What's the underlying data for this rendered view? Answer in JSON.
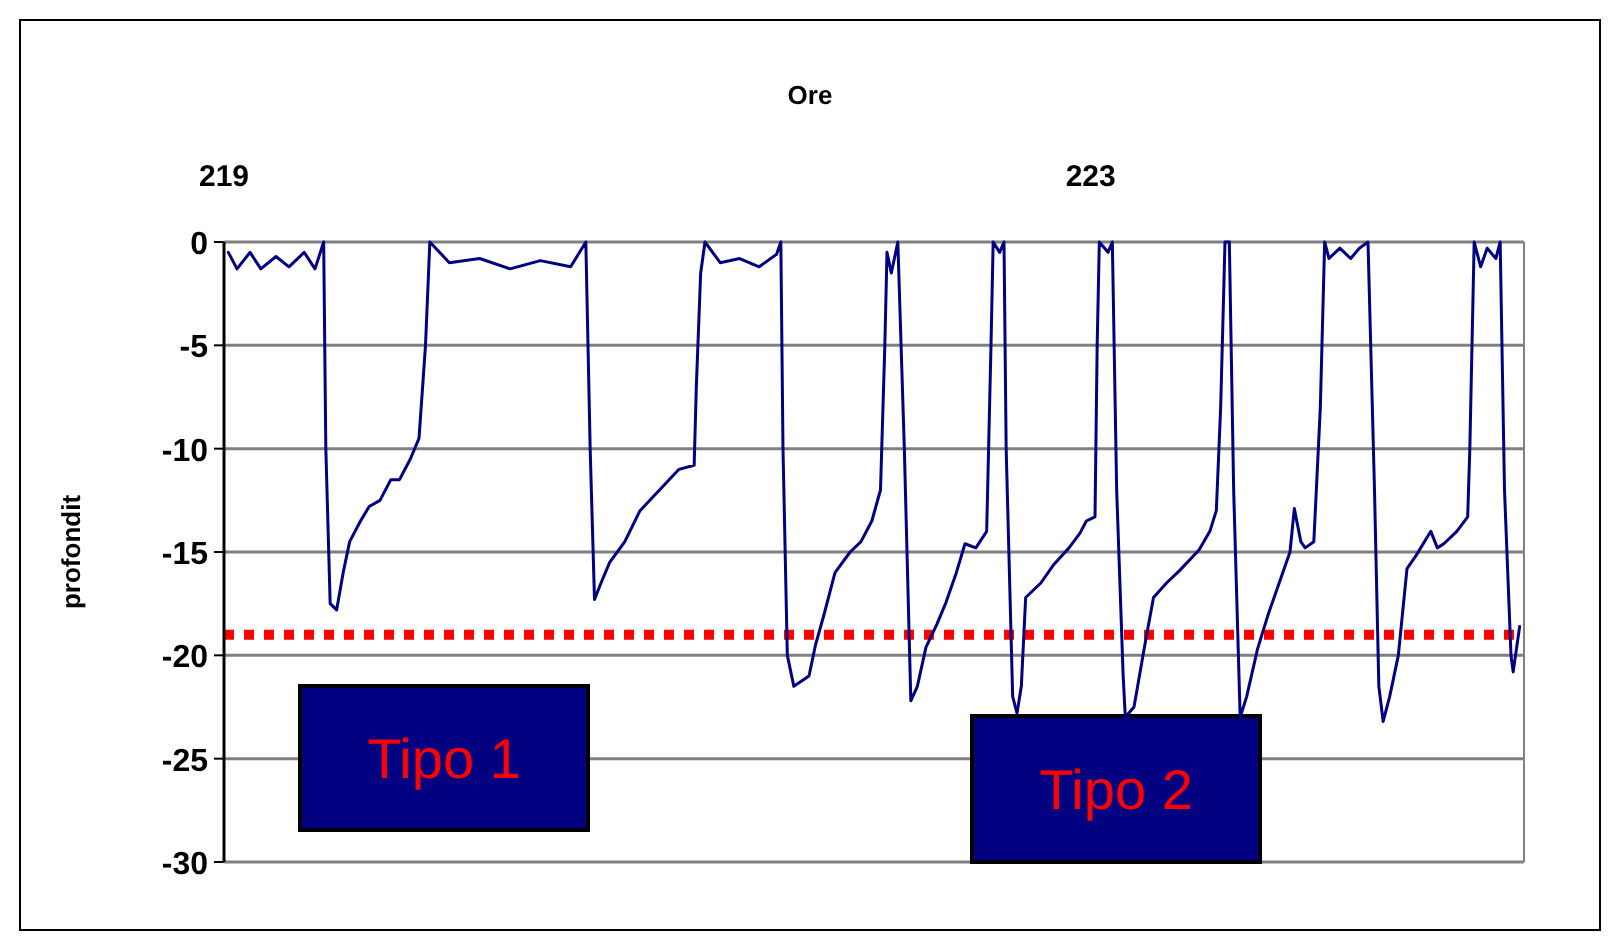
{
  "chart_data": {
    "type": "line",
    "xlabel": "Ore",
    "ylabel": "profondit",
    "xlim": [
      219,
      225
    ],
    "xticks": [
      219,
      223
    ],
    "ylim": [
      -30,
      0
    ],
    "yticks": [
      0,
      -5,
      -10,
      -15,
      -20,
      -25,
      -30
    ],
    "grid": "y",
    "marker": "none",
    "line_style": "solid",
    "ref_lines": [
      {
        "axis": "y",
        "value": -19,
        "color": "#ff0000",
        "line_style": "dotted"
      }
    ],
    "annotations": [
      "Tipo 1",
      "Tipo 2"
    ],
    "series": [
      {
        "color": "#000080",
        "x": [
          219.02,
          219.06,
          219.12,
          219.17,
          219.24,
          219.3,
          219.37,
          219.42,
          219.46,
          219.47,
          219.49,
          219.52,
          219.55,
          219.58,
          219.63,
          219.67,
          219.72,
          219.77,
          219.81,
          219.86,
          219.9,
          219.93,
          219.95,
          220.04,
          220.18,
          220.32,
          220.46,
          220.6,
          220.67,
          220.69,
          220.71,
          220.74,
          220.78,
          220.85,
          220.92,
          221.01,
          221.1,
          221.17,
          221.18,
          221.2,
          221.22,
          221.29,
          221.38,
          221.47,
          221.55,
          221.57,
          221.58,
          221.6,
          221.63,
          221.7,
          221.73,
          221.77,
          221.82,
          221.89,
          221.94,
          221.99,
          222.03,
          222.05,
          222.06,
          222.08,
          222.11,
          222.14,
          222.17,
          222.2,
          222.24,
          222.29,
          222.33,
          222.38,
          222.42,
          222.47,
          222.52,
          222.54,
          222.55,
          222.58,
          222.6,
          222.61,
          222.64,
          222.66,
          222.68,
          222.7,
          222.77,
          222.83,
          222.9,
          222.95,
          222.98,
          223.02,
          223.03,
          223.04,
          223.08,
          223.1,
          223.12,
          223.15,
          223.16,
          223.2,
          223.25,
          223.29,
          223.35,
          223.41,
          223.5,
          223.55,
          223.58,
          223.6,
          223.62,
          223.64,
          223.66,
          223.69,
          223.72,
          223.77,
          223.82,
          223.87,
          223.92,
          223.94,
          223.97,
          223.99,
          224.03,
          224.06,
          224.08,
          224.1,
          224.15,
          224.2,
          224.24,
          224.28,
          224.31,
          224.33,
          224.35,
          224.38,
          224.42,
          224.46,
          224.5,
          224.57,
          224.6,
          224.63,
          224.69,
          224.74,
          224.75,
          224.77,
          224.8,
          224.83,
          224.87,
          224.89,
          224.91,
          224.94,
          224.95,
          224.98
        ],
        "values": [
          -0.5,
          -1.3,
          -0.5,
          -1.3,
          -0.7,
          -1.2,
          -0.5,
          -1.3,
          0,
          -10,
          -17.5,
          -17.8,
          -16,
          -14.5,
          -13.5,
          -12.8,
          -12.5,
          -11.5,
          -11.5,
          -10.5,
          -9.5,
          -5,
          0,
          -1,
          -0.8,
          -1.3,
          -0.9,
          -1.2,
          0,
          -10,
          -17.3,
          -16.5,
          -15.5,
          -14.5,
          -13,
          -12,
          -11,
          -10.8,
          -7,
          -1.5,
          0,
          -1,
          -0.8,
          -1.2,
          -0.6,
          0,
          -10,
          -20,
          -21.5,
          -21,
          -19.5,
          -18,
          -16,
          -15,
          -14.5,
          -13.5,
          -12,
          -5,
          -0.5,
          -1.5,
          0,
          -10,
          -22.2,
          -21.5,
          -19.6,
          -18.5,
          -17.5,
          -16,
          -14.6,
          -14.8,
          -14,
          -5,
          0,
          -0.5,
          0,
          -10,
          -22,
          -22.8,
          -21.5,
          -17.2,
          -16.5,
          -15.6,
          -14.8,
          -14.1,
          -13.5,
          -13.3,
          -5,
          0,
          -0.5,
          0,
          -12,
          -21,
          -23,
          -22.5,
          -19.5,
          -17.2,
          -16.5,
          -15.9,
          -14.9,
          -14,
          -13,
          -8,
          0,
          0,
          -12,
          -23,
          -22,
          -19.7,
          -18,
          -16.5,
          -15,
          -12.9,
          -14.5,
          -14.8,
          -14.5,
          -8,
          0,
          -0.8,
          -0.3,
          -0.8,
          -0.3,
          0,
          -12,
          -21.5,
          -23.2,
          -22,
          -20,
          -15.8,
          -15.2,
          -14,
          -14.8,
          -14.6,
          -14,
          -13.3,
          -10,
          0,
          -1.2,
          -0.3,
          -0.8,
          0,
          -12,
          -20,
          -20.8,
          -18.6
        ]
      }
    ]
  }
}
